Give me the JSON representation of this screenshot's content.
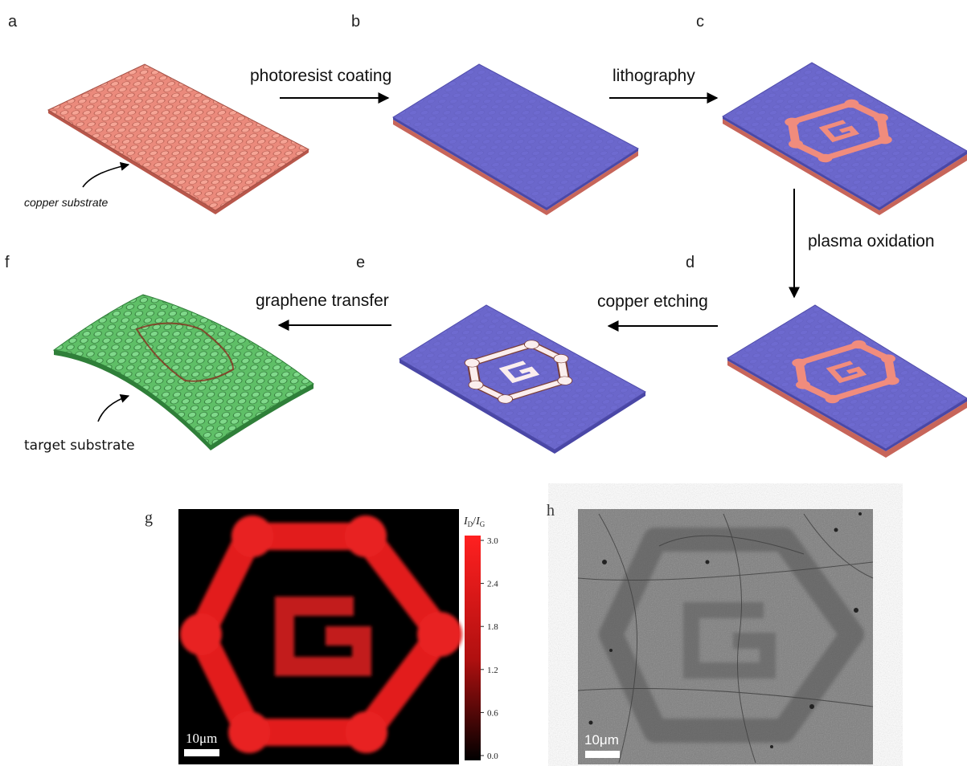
{
  "panels": {
    "a": "a",
    "b": "b",
    "c": "c",
    "d": "d",
    "e": "e",
    "f": "f",
    "g": "g",
    "h": "h"
  },
  "steps": {
    "photoresist": "photoresist coating",
    "lithography": "lithography",
    "plasma": "plasma oxidation",
    "etching": "copper etching",
    "transfer": "graphene transfer"
  },
  "annotations": {
    "copper": "copper substrate",
    "target": "target substrate"
  },
  "raman_map": {
    "colorbar_label_I": "I",
    "colorbar_label_D": "D",
    "colorbar_label_slash": "/",
    "colorbar_label_G": "G",
    "ticks": [
      "3.0",
      "2.4",
      "1.8",
      "1.2",
      "0.6",
      "0.0"
    ],
    "scale_bar": "10μm"
  },
  "sem_image": {
    "scale_bar": "10μm"
  },
  "colors": {
    "copper": "#e9877a",
    "photoresist": "#6a66c8",
    "graphene_green": "#62c46a",
    "raman_red": "#e62222"
  }
}
